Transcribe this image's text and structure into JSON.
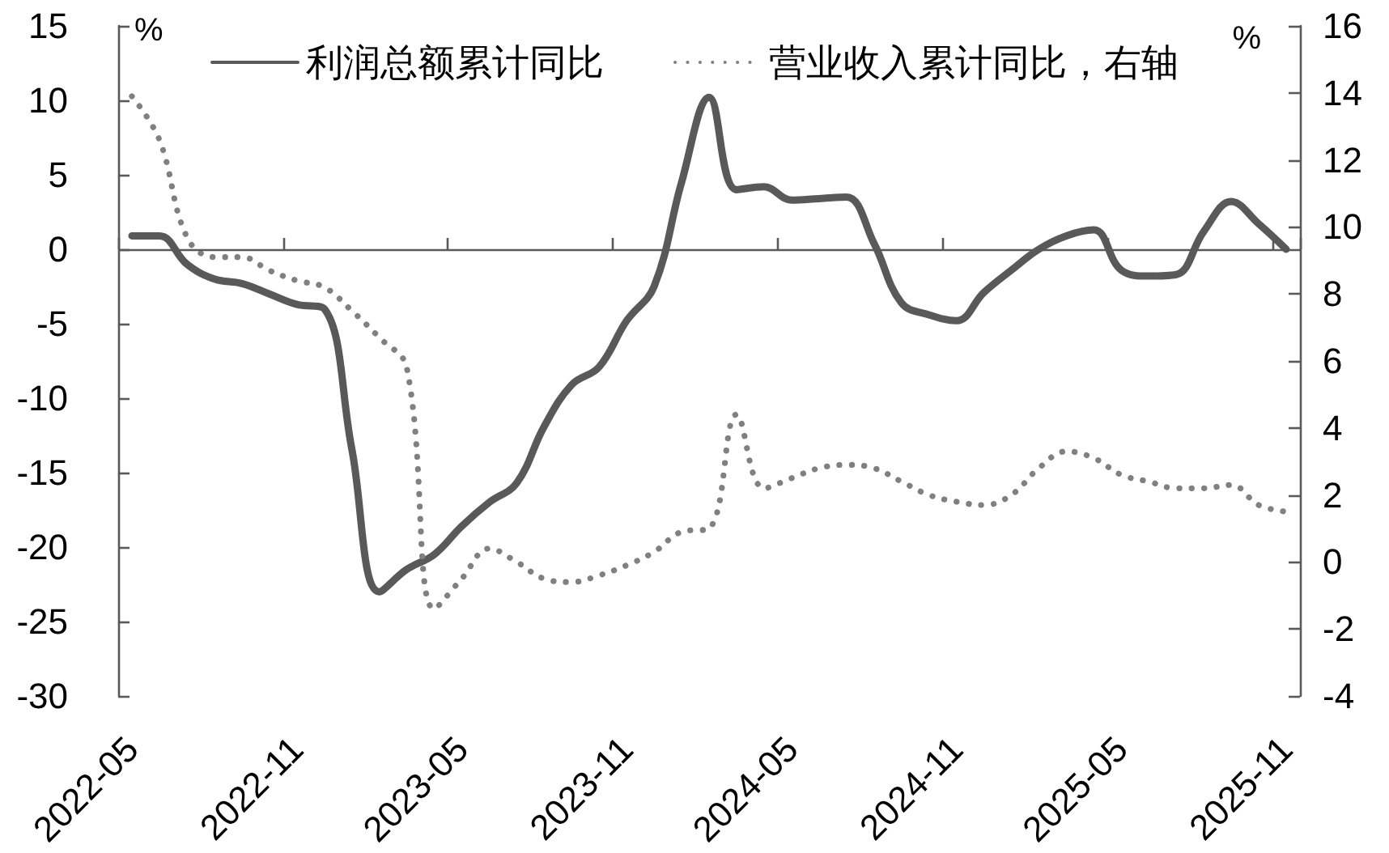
{
  "chart_data": {
    "type": "line",
    "ylabel": "%",
    "y2label": "%",
    "categories": [
      "2022-05",
      null,
      null,
      null,
      null,
      null,
      "2022-11",
      null,
      null,
      null,
      null,
      null,
      "2023-05",
      null,
      null,
      null,
      null,
      null,
      "2023-11",
      null,
      null,
      null,
      null,
      null,
      "2024-05",
      null,
      null,
      null,
      null,
      null,
      "2024-11",
      null,
      null,
      null,
      null,
      null,
      "2025-05",
      null,
      null,
      null,
      null,
      null,
      "2025-11"
    ],
    "series": [
      {
        "name": "利润总额累计同比",
        "color": "#595959",
        "line_style": "solid",
        "values": [
          0.9,
          0.9,
          -1.0,
          -2.0,
          -2.3,
          -3.0,
          -3.7,
          -4.0,
          -13.4,
          -23.0,
          -21.5,
          -20.5,
          -18.6,
          -17.0,
          -15.7,
          -11.9,
          -9.1,
          -7.9,
          -4.8,
          -2.5,
          4.5,
          10.2,
          4.0,
          4.2,
          3.3,
          3.4,
          3.5,
          0.4,
          -3.6,
          -4.4,
          -4.8,
          -2.9,
          -1.4,
          0.0,
          0.9,
          1.3,
          -1.4,
          -1.8,
          -1.7,
          1.2,
          3.2,
          1.7,
          0.0
        ]
      },
      {
        "name": "营业收入累计同比，右轴",
        "color": "#808080",
        "line_style": "dotted",
        "axis": "y2",
        "values": [
          13.9,
          12.6,
          9.7,
          9.1,
          9.1,
          8.7,
          8.4,
          8.2,
          7.5,
          6.7,
          5.8,
          -1.4,
          -0.5,
          0.4,
          0.0,
          -0.5,
          -0.6,
          -0.4,
          -0.1,
          0.3,
          0.9,
          1.0,
          4.4,
          2.2,
          2.5,
          2.8,
          2.9,
          2.8,
          2.4,
          2.0,
          1.8,
          1.7,
          2.0,
          2.8,
          3.3,
          3.1,
          2.6,
          2.4,
          2.2,
          2.2,
          2.3,
          1.7,
          1.5
        ]
      }
    ],
    "ylim": [
      -30,
      15
    ],
    "yticks": [
      -30,
      -25,
      -20,
      -15,
      -10,
      -5,
      0,
      5,
      10,
      15
    ],
    "y2lim": [
      -4,
      16
    ],
    "y2ticks": [
      -4,
      -2,
      0,
      2,
      4,
      6,
      8,
      10,
      12,
      14,
      16
    ],
    "ref_lines": [
      {
        "axis": "y",
        "value": 0
      }
    ],
    "legend": "top",
    "grid": false,
    "marker": "none"
  }
}
